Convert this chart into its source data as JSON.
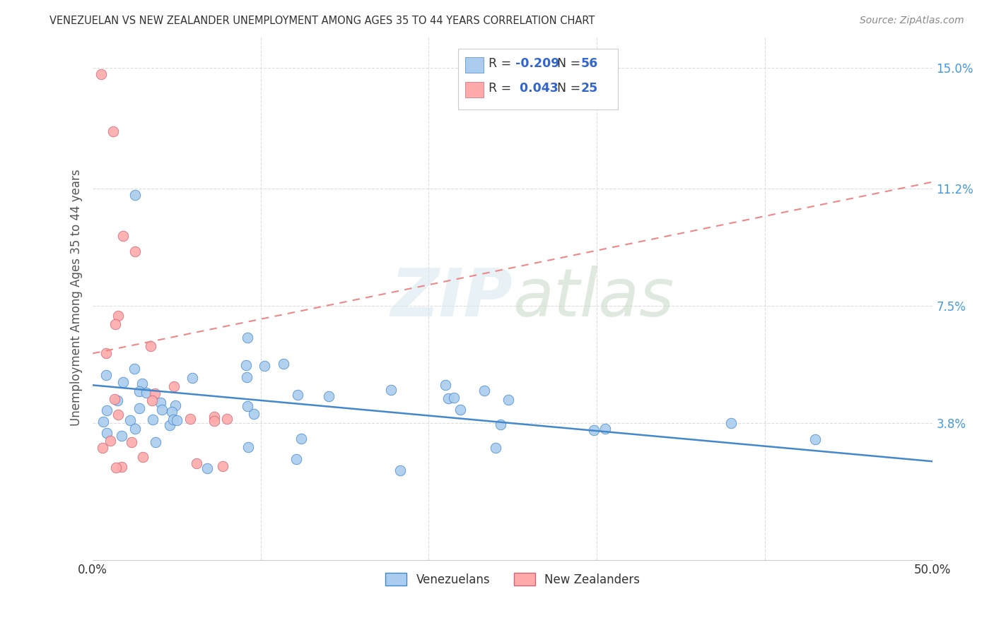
{
  "title": "VENEZUELAN VS NEW ZEALANDER UNEMPLOYMENT AMONG AGES 35 TO 44 YEARS CORRELATION CHART",
  "source": "Source: ZipAtlas.com",
  "ylabel": "Unemployment Among Ages 35 to 44 years",
  "xlim": [
    0.0,
    0.5
  ],
  "ylim": [
    -0.005,
    0.16
  ],
  "ytick_positions": [
    0.038,
    0.075,
    0.112,
    0.15
  ],
  "yticklabels": [
    "3.8%",
    "7.5%",
    "11.2%",
    "15.0%"
  ],
  "venezuelan_R": -0.209,
  "venezuelan_N": 56,
  "nz_R": 0.043,
  "nz_N": 25,
  "dot_color_venezuelan": "#aaccee",
  "dot_color_nz": "#ffaaaa",
  "line_color_venezuelan": "#4488cc",
  "line_color_nz": "#ee8888",
  "watermark_text": "ZIPatlas",
  "background_color": "#ffffff",
  "grid_color": "#dddddd",
  "title_color": "#333333",
  "axis_label_color": "#555555",
  "tick_label_color_y": "#4499dd",
  "tick_label_color_x": "#333333",
  "legend_text_color": "#333333",
  "legend_value_color": "#3366cc",
  "source_color": "#888888",
  "ven_line_x0": 0.0,
  "ven_line_x1": 0.5,
  "ven_line_y0": 0.05,
  "ven_line_y1": 0.026,
  "nz_line_x0": 0.0,
  "nz_line_x1": 0.5,
  "nz_line_y0": 0.06,
  "nz_line_y1": 0.114
}
